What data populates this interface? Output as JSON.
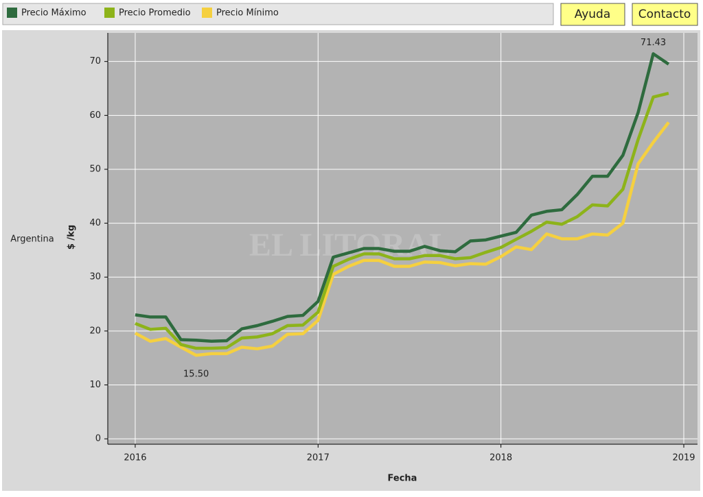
{
  "chart_data": {
    "type": "line",
    "legend": [
      "Precio Máximo",
      "Precio Promedio",
      "Precio Mínimo"
    ],
    "buttons": [
      "Ayuda",
      "Contacto"
    ],
    "row_label": "Argentina",
    "watermark": "EL LITORAL",
    "xlabel": "Fecha",
    "ylabel": "$ /kg",
    "x": [
      2016,
      2016.083,
      2016.167,
      2016.25,
      2016.333,
      2016.417,
      2016.5,
      2016.583,
      2016.667,
      2016.75,
      2016.833,
      2016.917,
      2017,
      2017.083,
      2017.167,
      2017.25,
      2017.333,
      2017.417,
      2017.5,
      2017.583,
      2017.667,
      2017.75,
      2017.833,
      2017.917,
      2018,
      2018.083,
      2018.167,
      2018.25,
      2018.333,
      2018.417,
      2018.5,
      2018.583,
      2018.667,
      2018.75,
      2018.833,
      2018.917
    ],
    "series": [
      {
        "name": "Precio Máximo",
        "color": "#2e6b3e",
        "values": [
          23,
          22.6,
          22.6,
          18.4,
          18.3,
          18.1,
          18.2,
          20.4,
          21,
          21.8,
          22.7,
          22.9,
          25.5,
          33.7,
          34.5,
          35.3,
          35.3,
          34.8,
          34.8,
          35.7,
          34.9,
          34.7,
          36.7,
          36.9,
          37.6,
          38.3,
          41.5,
          42.2,
          42.5,
          45.3,
          48.7,
          48.7,
          52.6,
          60.5,
          71.43,
          69.5
        ],
        "value_labels": [
          null,
          null,
          null,
          null,
          null,
          null,
          null,
          null,
          null,
          null,
          null,
          null,
          null,
          null,
          null,
          null,
          null,
          null,
          null,
          null,
          null,
          null,
          null,
          null,
          null,
          null,
          null,
          null,
          null,
          null,
          null,
          null,
          null,
          null,
          "71.43",
          null
        ]
      },
      {
        "name": "Precio Promedio",
        "color": "#8db31a",
        "values": [
          21.4,
          20.3,
          20.5,
          17.5,
          16.8,
          16.8,
          16.9,
          18.7,
          18.9,
          19.5,
          21,
          21.1,
          23.5,
          32,
          33.3,
          34.3,
          34.3,
          33.4,
          33.4,
          34,
          34,
          33.4,
          33.6,
          34.6,
          35.5,
          37,
          38.5,
          40.2,
          39.8,
          41.2,
          43.4,
          43.2,
          46.3,
          55.5,
          63.4,
          64.1
        ]
      },
      {
        "name": "Precio Mínimo",
        "color": "#f5d040",
        "values": [
          19.6,
          18.1,
          18.6,
          17,
          15.5,
          15.8,
          15.8,
          17,
          16.7,
          17.2,
          19.4,
          19.5,
          22,
          30.5,
          32,
          33.1,
          33.1,
          32,
          32,
          32.8,
          32.7,
          32.1,
          32.5,
          32.4,
          33.8,
          35.6,
          35.1,
          38,
          37.1,
          37.1,
          38,
          37.8,
          40,
          51,
          55,
          58.7
        ],
        "value_labels": [
          null,
          null,
          null,
          null,
          "15.50",
          null,
          null,
          null,
          null,
          null,
          null,
          null,
          null,
          null,
          null,
          null,
          null,
          null,
          null,
          null,
          null,
          null,
          null,
          null,
          null,
          null,
          null,
          null,
          null,
          null,
          null,
          null,
          null,
          null,
          null,
          null
        ]
      }
    ],
    "xlim": [
      2015.85,
      2019.075
    ],
    "xticks": [
      2016,
      2017,
      2018,
      2019
    ],
    "ylim": [
      -1,
      75.3
    ],
    "yticks": [
      0,
      10,
      20,
      30,
      40,
      50,
      60,
      70
    ],
    "grid": true
  }
}
